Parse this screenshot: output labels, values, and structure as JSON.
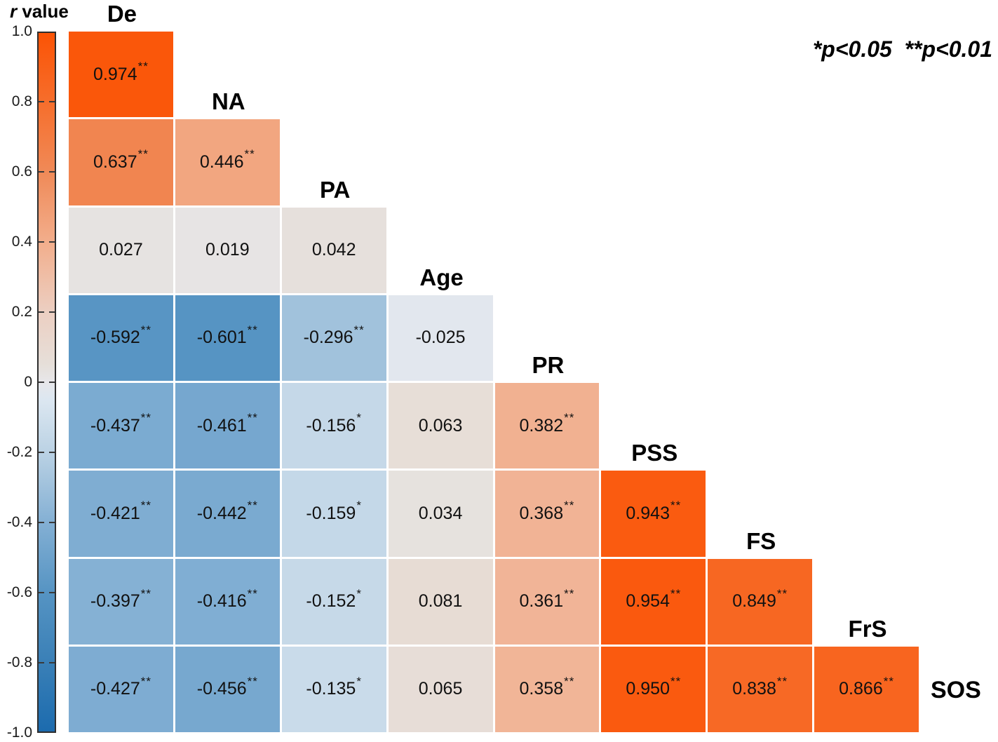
{
  "colorbar": {
    "title_r": "r",
    "title_rest": " value",
    "ticks": [
      {
        "label": "1.0",
        "v": 1.0
      },
      {
        "label": "0.8",
        "v": 0.8
      },
      {
        "label": "0.6",
        "v": 0.6
      },
      {
        "label": "0.4",
        "v": 0.4
      },
      {
        "label": "0.2",
        "v": 0.2
      },
      {
        "label": "0",
        "v": 0.0
      },
      {
        "label": "-0.2",
        "v": -0.2
      },
      {
        "label": "-0.4",
        "v": -0.4
      },
      {
        "label": "-0.6",
        "v": -0.6
      },
      {
        "label": "-0.8",
        "v": -0.8
      },
      {
        "label": "-1.0",
        "v": -1.0
      }
    ]
  },
  "annotation": "*p<0.05  **p<0.01",
  "chart_data": {
    "type": "heatmap",
    "subtype": "lower-triangular correlation matrix",
    "variables": [
      "De",
      "NA",
      "PA",
      "Age",
      "PR",
      "PSS",
      "FS",
      "FrS",
      "SOS"
    ],
    "value_range": [
      -1.0,
      1.0
    ],
    "legend_title": "r value",
    "colormap_stops": [
      {
        "v": 1.0,
        "color": "#FB5305"
      },
      {
        "v": 0.8,
        "color": "#F66E2C"
      },
      {
        "v": 0.6,
        "color": "#F08A58"
      },
      {
        "v": 0.4,
        "color": "#F2AE8C"
      },
      {
        "v": 0.2,
        "color": "#ECCFC2"
      },
      {
        "v": 0.05,
        "color": "#E6DFD9"
      },
      {
        "v": 0.0,
        "color": "#E7E7EA"
      },
      {
        "v": -0.05,
        "color": "#DCE7F1"
      },
      {
        "v": -0.2,
        "color": "#BBD2E4"
      },
      {
        "v": -0.4,
        "color": "#84B0D4"
      },
      {
        "v": -0.6,
        "color": "#5694C3"
      },
      {
        "v": -0.8,
        "color": "#3A80B7"
      },
      {
        "v": -1.0,
        "color": "#1C6BAE"
      }
    ],
    "rows": [
      [
        {
          "r": "0.974",
          "sig": "**"
        }
      ],
      [
        {
          "r": "0.637",
          "sig": "**"
        },
        {
          "r": "0.446",
          "sig": "**"
        }
      ],
      [
        {
          "r": "0.027",
          "sig": ""
        },
        {
          "r": "0.019",
          "sig": ""
        },
        {
          "r": "0.042",
          "sig": ""
        }
      ],
      [
        {
          "r": "-0.592",
          "sig": "**"
        },
        {
          "r": "-0.601",
          "sig": "**"
        },
        {
          "r": "-0.296",
          "sig": "**"
        },
        {
          "r": "-0.025",
          "sig": ""
        }
      ],
      [
        {
          "r": "-0.437",
          "sig": "**"
        },
        {
          "r": "-0.461",
          "sig": "**"
        },
        {
          "r": "-0.156",
          "sig": "*"
        },
        {
          "r": "0.063",
          "sig": ""
        },
        {
          "r": "0.382",
          "sig": "**"
        }
      ],
      [
        {
          "r": "-0.421",
          "sig": "**"
        },
        {
          "r": "-0.442",
          "sig": "**"
        },
        {
          "r": "-0.159",
          "sig": "*"
        },
        {
          "r": "0.034",
          "sig": ""
        },
        {
          "r": "0.368",
          "sig": "**"
        },
        {
          "r": "0.943",
          "sig": "**"
        }
      ],
      [
        {
          "r": "-0.397",
          "sig": "**"
        },
        {
          "r": "-0.416",
          "sig": "**"
        },
        {
          "r": "-0.152",
          "sig": "*"
        },
        {
          "r": "0.081",
          "sig": ""
        },
        {
          "r": "0.361",
          "sig": "**"
        },
        {
          "r": "0.954",
          "sig": "**"
        },
        {
          "r": "0.849",
          "sig": "**"
        }
      ],
      [
        {
          "r": "-0.427",
          "sig": "**"
        },
        {
          "r": "-0.456",
          "sig": "**"
        },
        {
          "r": "-0.135",
          "sig": "*"
        },
        {
          "r": "0.065",
          "sig": ""
        },
        {
          "r": "0.358",
          "sig": "**"
        },
        {
          "r": "0.950",
          "sig": "**"
        },
        {
          "r": "0.838",
          "sig": "**"
        },
        {
          "r": "0.866",
          "sig": "**"
        }
      ]
    ]
  }
}
